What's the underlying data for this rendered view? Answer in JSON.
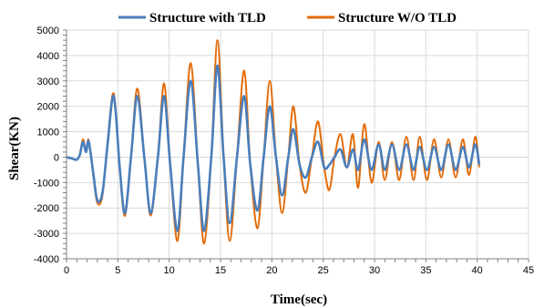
{
  "chart_data": {
    "type": "line",
    "xlabel": "Time(sec)",
    "ylabel": "Shear(KN)",
    "xlim": [
      0,
      45
    ],
    "ylim": [
      -4000,
      5000
    ],
    "xticks": [
      0,
      5,
      10,
      15,
      20,
      25,
      30,
      35,
      40,
      45
    ],
    "yticks": [
      -4000,
      -3000,
      -2000,
      -1000,
      0,
      1000,
      2000,
      3000,
      4000,
      5000
    ],
    "grid": true,
    "legend_position": "top",
    "series": [
      {
        "name": "Structure with TLD",
        "color": "#4a7ebb",
        "x": [
          0,
          0.5,
          1.0,
          1.3,
          1.6,
          1.9,
          2.1,
          2.3,
          2.6,
          3.0,
          3.5,
          4.0,
          4.6,
          5.2,
          5.7,
          6.3,
          6.9,
          7.6,
          8.2,
          8.9,
          9.5,
          10.1,
          10.8,
          11.4,
          12.1,
          12.8,
          13.4,
          14.1,
          14.7,
          15.3,
          15.9,
          16.6,
          17.3,
          17.9,
          18.6,
          19.2,
          19.8,
          20.4,
          21.0,
          21.6,
          22.1,
          22.7,
          23.3,
          23.9,
          24.5,
          25.1,
          25.6,
          26.1,
          26.7,
          27.3,
          27.9,
          28.4,
          29.0,
          29.7,
          30.4,
          31.0,
          31.7,
          32.4,
          33.1,
          33.8,
          34.4,
          35.1,
          35.8,
          36.5,
          37.2,
          37.9,
          38.6,
          39.2,
          39.8,
          40.2
        ],
        "y": [
          0,
          -50,
          -100,
          100,
          600,
          200,
          650,
          300,
          -600,
          -1700,
          -1400,
          500,
          2400,
          -500,
          -2200,
          100,
          2400,
          -100,
          -2200,
          0,
          2400,
          -300,
          -2900,
          0,
          3000,
          -300,
          -2900,
          0,
          3600,
          0,
          -2600,
          0,
          2400,
          -300,
          -2100,
          0,
          2000,
          0,
          -1500,
          0,
          1100,
          -300,
          -800,
          0,
          600,
          -400,
          -300,
          0,
          300,
          -400,
          300,
          -500,
          700,
          -500,
          500,
          -500,
          500,
          -500,
          500,
          -500,
          400,
          -500,
          400,
          -500,
          500,
          -500,
          400,
          -400,
          500,
          -300
        ]
      },
      {
        "name": "Structure W/O TLD",
        "color": "#e36c09",
        "x": [
          0,
          0.5,
          1.0,
          1.3,
          1.6,
          1.9,
          2.1,
          2.3,
          2.6,
          3.0,
          3.5,
          4.0,
          4.6,
          5.2,
          5.7,
          6.3,
          6.9,
          7.6,
          8.2,
          8.9,
          9.5,
          10.1,
          10.8,
          11.4,
          12.1,
          12.8,
          13.4,
          14.1,
          14.7,
          15.3,
          15.9,
          16.6,
          17.3,
          17.9,
          18.6,
          19.2,
          19.8,
          20.4,
          21.0,
          21.6,
          22.1,
          22.7,
          23.3,
          23.9,
          24.5,
          25.1,
          25.6,
          26.1,
          26.7,
          27.3,
          27.9,
          28.4,
          29.0,
          29.7,
          30.4,
          31.0,
          31.7,
          32.4,
          33.1,
          33.8,
          34.4,
          35.1,
          35.8,
          36.5,
          37.2,
          37.9,
          38.6,
          39.2,
          39.8,
          40.2
        ],
        "y": [
          0,
          -50,
          -100,
          100,
          700,
          200,
          700,
          300,
          -700,
          -1800,
          -1500,
          600,
          2500,
          -600,
          -2300,
          100,
          2700,
          -100,
          -2300,
          0,
          2900,
          -300,
          -3300,
          0,
          3700,
          -300,
          -3400,
          0,
          4600,
          0,
          -3300,
          0,
          3400,
          -300,
          -2800,
          0,
          3000,
          0,
          -2200,
          0,
          2000,
          -300,
          -1400,
          0,
          1400,
          -400,
          -1300,
          0,
          900,
          -400,
          900,
          -1200,
          1300,
          -1000,
          600,
          -900,
          600,
          -900,
          800,
          -900,
          800,
          -900,
          700,
          -800,
          700,
          -800,
          700,
          -700,
          800,
          -400
        ]
      }
    ]
  }
}
